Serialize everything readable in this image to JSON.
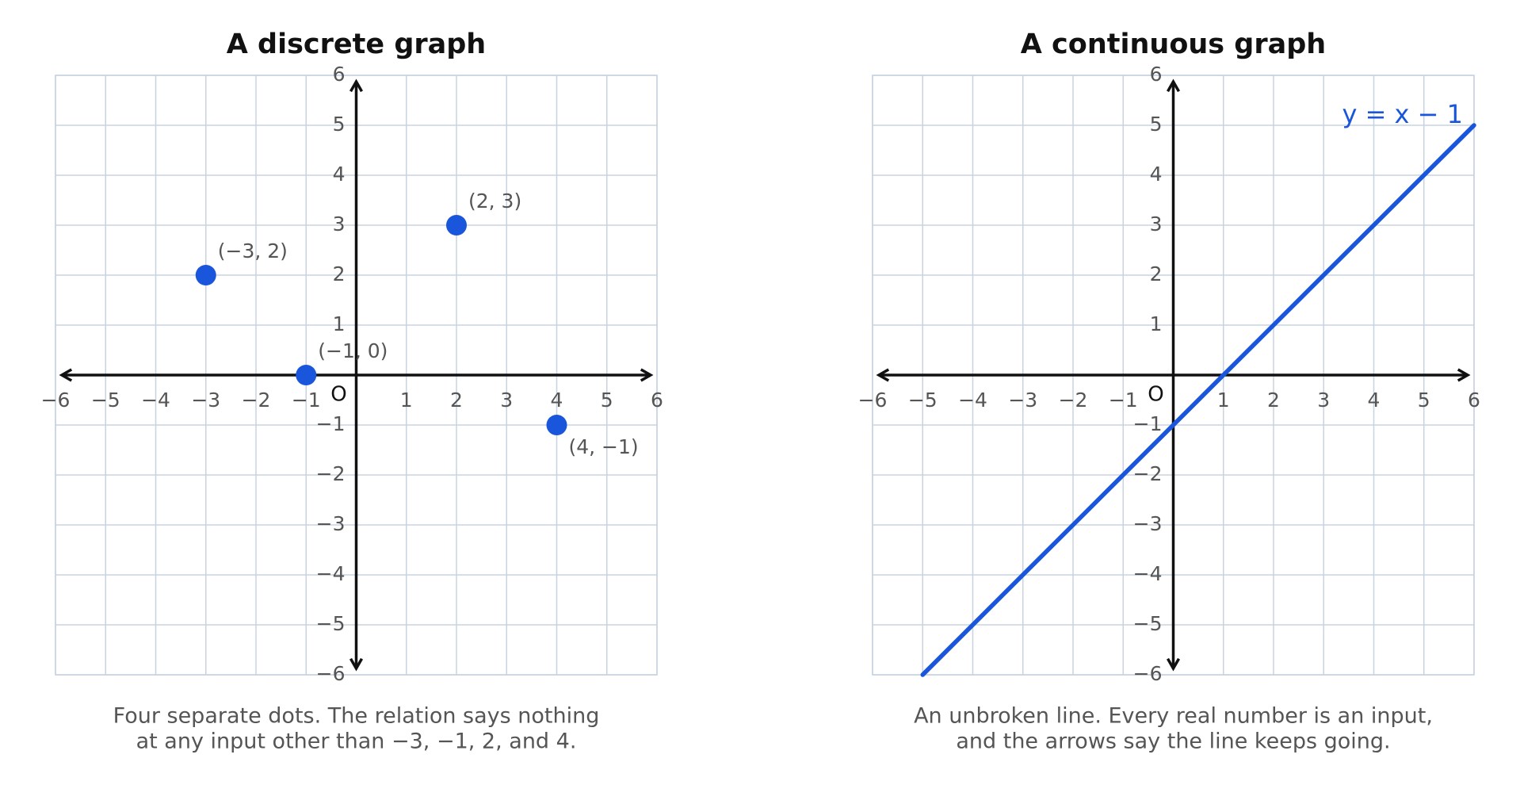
{
  "chart_data": [
    {
      "type": "scatter",
      "title": "A discrete graph",
      "x": [
        -3,
        -1,
        2,
        4
      ],
      "values": [
        2,
        0,
        3,
        -1
      ],
      "value_labels": [
        "(−3, 2)",
        "(−1, 0)",
        "(2, 3)",
        "(4, −1)"
      ],
      "color": "#1a56db",
      "xlim": [
        -6,
        6
      ],
      "ylim": [
        -6,
        6
      ],
      "xticks": [
        {
          "value": -6,
          "label": "−6"
        },
        {
          "value": -5,
          "label": "−5"
        },
        {
          "value": -4,
          "label": "−4"
        },
        {
          "value": -3,
          "label": "−3"
        },
        {
          "value": -2,
          "label": "−2"
        },
        {
          "value": -1,
          "label": "−1"
        },
        1,
        2,
        3,
        4,
        5,
        6
      ],
      "yticks": [
        {
          "value": -6,
          "label": "−6"
        },
        {
          "value": -5,
          "label": "−5"
        },
        {
          "value": -4,
          "label": "−4"
        },
        {
          "value": -3,
          "label": "−3"
        },
        {
          "value": -2,
          "label": "−2"
        },
        {
          "value": -1,
          "label": "−1"
        },
        1,
        2,
        3,
        4,
        5,
        6
      ],
      "origin_label": "O",
      "grid": true,
      "caption": [
        "Four separate dots. The relation says nothing",
        "at any input other than −3, −1, 2, and 4."
      ]
    },
    {
      "type": "line",
      "title": "A continuous graph",
      "x": [
        -5,
        6
      ],
      "values": [
        -6,
        5
      ],
      "color": "#1a56db",
      "annotation": "y = x − 1",
      "xlim": [
        -6,
        6
      ],
      "ylim": [
        -6,
        6
      ],
      "xticks": [
        {
          "value": -6,
          "label": "−6"
        },
        {
          "value": -5,
          "label": "−5"
        },
        {
          "value": -4,
          "label": "−4"
        },
        {
          "value": -3,
          "label": "−3"
        },
        {
          "value": -2,
          "label": "−2"
        },
        {
          "value": -1,
          "label": "−1"
        },
        1,
        2,
        3,
        4,
        5,
        6
      ],
      "yticks": [
        {
          "value": -6,
          "label": "−6"
        },
        {
          "value": -5,
          "label": "−5"
        },
        {
          "value": -4,
          "label": "−4"
        },
        {
          "value": -3,
          "label": "−3"
        },
        {
          "value": -2,
          "label": "−2"
        },
        {
          "value": -1,
          "label": "−1"
        },
        1,
        2,
        3,
        4,
        5,
        6
      ],
      "origin_label": "O",
      "grid": true,
      "caption": [
        "An unbroken line. Every real number is an input,",
        "and the arrows say the line keeps going."
      ]
    }
  ]
}
